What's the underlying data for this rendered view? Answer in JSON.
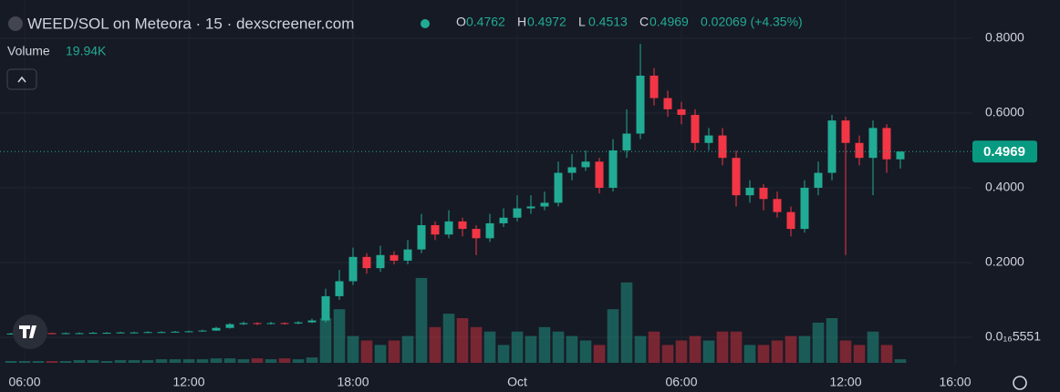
{
  "chart_data": {
    "type": "candlestick",
    "title": "WEED/SOL on Meteora · 15 · dexscreener.com",
    "ohlc_letters": [
      "O",
      "H",
      "L",
      "C"
    ],
    "change": "0.02069 (+4.35%)",
    "volume_title": "Volume",
    "volume_label": "19.94K",
    "x": [
      5.5,
      6,
      6.5,
      7,
      7.5,
      8,
      8.5,
      9,
      9.5,
      10,
      10.5,
      11,
      11.5,
      12,
      12.5,
      13,
      13.5,
      14,
      14.5,
      15,
      15.5,
      16,
      16.5,
      17,
      17.5,
      18,
      18.5,
      19,
      19.5,
      20,
      20.5,
      21,
      21.5,
      22,
      22.5,
      23,
      23.5,
      24,
      24.5,
      25,
      25.5,
      26,
      26.5,
      27,
      27.5,
      28,
      28.5,
      29,
      29.5,
      30,
      30.5,
      31,
      31.5,
      32,
      32.5,
      33,
      33.5,
      34,
      34.5,
      35,
      35.5,
      36,
      36.5,
      37,
      37.5,
      38
    ],
    "open": [
      0.01,
      0.01,
      0.01,
      0.011,
      0.01,
      0.011,
      0.011,
      0.012,
      0.012,
      0.013,
      0.013,
      0.014,
      0.014,
      0.015,
      0.016,
      0.018,
      0.025,
      0.035,
      0.038,
      0.036,
      0.038,
      0.037,
      0.04,
      0.045,
      0.11,
      0.15,
      0.215,
      0.185,
      0.22,
      0.205,
      0.235,
      0.3,
      0.275,
      0.31,
      0.29,
      0.265,
      0.305,
      0.32,
      0.345,
      0.35,
      0.36,
      0.44,
      0.455,
      0.47,
      0.4,
      0.5,
      0.545,
      0.7,
      0.64,
      0.61,
      0.595,
      0.52,
      0.54,
      0.48,
      0.38,
      0.4,
      0.37,
      0.335,
      0.29,
      0.4,
      0.44,
      0.58,
      0.52,
      0.48,
      0.56,
      0.4762
    ],
    "high": [
      0.012,
      0.012,
      0.013,
      0.012,
      0.013,
      0.013,
      0.014,
      0.014,
      0.015,
      0.015,
      0.016,
      0.016,
      0.017,
      0.018,
      0.02,
      0.028,
      0.038,
      0.042,
      0.04,
      0.041,
      0.04,
      0.043,
      0.05,
      0.13,
      0.18,
      0.24,
      0.225,
      0.245,
      0.23,
      0.26,
      0.33,
      0.31,
      0.34,
      0.32,
      0.3,
      0.33,
      0.345,
      0.38,
      0.38,
      0.39,
      0.47,
      0.49,
      0.5,
      0.48,
      0.53,
      0.61,
      0.785,
      0.72,
      0.66,
      0.63,
      0.61,
      0.56,
      0.56,
      0.5,
      0.42,
      0.41,
      0.39,
      0.35,
      0.42,
      0.47,
      0.595,
      0.59,
      0.54,
      0.58,
      0.57,
      0.4972
    ],
    "low": [
      0.008,
      0.008,
      0.009,
      0.009,
      0.009,
      0.009,
      0.01,
      0.01,
      0.011,
      0.011,
      0.012,
      0.012,
      0.013,
      0.014,
      0.015,
      0.017,
      0.023,
      0.033,
      0.033,
      0.034,
      0.034,
      0.035,
      0.038,
      0.04,
      0.1,
      0.14,
      0.17,
      0.175,
      0.195,
      0.195,
      0.225,
      0.26,
      0.265,
      0.27,
      0.22,
      0.255,
      0.295,
      0.31,
      0.33,
      0.34,
      0.35,
      0.42,
      0.445,
      0.385,
      0.39,
      0.48,
      0.53,
      0.62,
      0.59,
      0.57,
      0.5,
      0.5,
      0.46,
      0.35,
      0.36,
      0.34,
      0.32,
      0.27,
      0.28,
      0.38,
      0.42,
      0.22,
      0.46,
      0.38,
      0.44,
      0.4513
    ],
    "close": [
      0.01,
      0.01,
      0.011,
      0.01,
      0.011,
      0.011,
      0.012,
      0.012,
      0.013,
      0.013,
      0.014,
      0.014,
      0.015,
      0.016,
      0.018,
      0.025,
      0.035,
      0.038,
      0.036,
      0.038,
      0.037,
      0.04,
      0.045,
      0.11,
      0.15,
      0.215,
      0.185,
      0.22,
      0.205,
      0.235,
      0.3,
      0.275,
      0.31,
      0.29,
      0.265,
      0.305,
      0.32,
      0.345,
      0.35,
      0.36,
      0.44,
      0.455,
      0.47,
      0.4,
      0.5,
      0.545,
      0.7,
      0.64,
      0.61,
      0.595,
      0.52,
      0.54,
      0.48,
      0.38,
      0.4,
      0.37,
      0.335,
      0.29,
      0.4,
      0.44,
      0.58,
      0.52,
      0.48,
      0.56,
      0.4762,
      0.4969
    ],
    "volume": [
      10,
      10,
      10,
      10,
      10,
      15,
      15,
      10,
      15,
      15,
      15,
      20,
      20,
      20,
      20,
      25,
      25,
      20,
      25,
      20,
      25,
      20,
      30,
      250,
      300,
      150,
      125,
      100,
      125,
      150,
      475,
      200,
      275,
      250,
      200,
      175,
      100,
      175,
      150,
      200,
      175,
      150,
      125,
      100,
      300,
      450,
      150,
      175,
      100,
      125,
      150,
      125,
      175,
      175,
      100,
      100,
      125,
      150,
      150,
      225,
      250,
      125,
      100,
      175,
      100,
      19.94
    ],
    "vlim": [
      0,
      500
    ],
    "xlim": [
      5.1,
      40.6
    ],
    "xticks": [
      {
        "value": 6,
        "label": "06:00"
      },
      {
        "value": 12,
        "label": "12:00"
      },
      {
        "value": 18,
        "label": "18:00"
      },
      {
        "value": 24,
        "label": "Oct"
      },
      {
        "value": 30,
        "label": "06:00"
      },
      {
        "value": 36,
        "label": "12:00"
      },
      {
        "value": 40,
        "label": "16:00"
      }
    ],
    "ylim": [
      -0.0732,
      0.9024
    ],
    "yticks": [
      {
        "value": 5.551e-17,
        "label": "0.0₁₆5551"
      },
      {
        "value": 0.2,
        "label": "0.2000"
      },
      {
        "value": 0.4,
        "label": "0.4000"
      },
      {
        "value": 0.6,
        "label": "0.6000"
      },
      {
        "value": 0.8,
        "label": "0.8000"
      }
    ],
    "up_color": "#22ab94",
    "down_color": "#f23645",
    "grid": true
  }
}
